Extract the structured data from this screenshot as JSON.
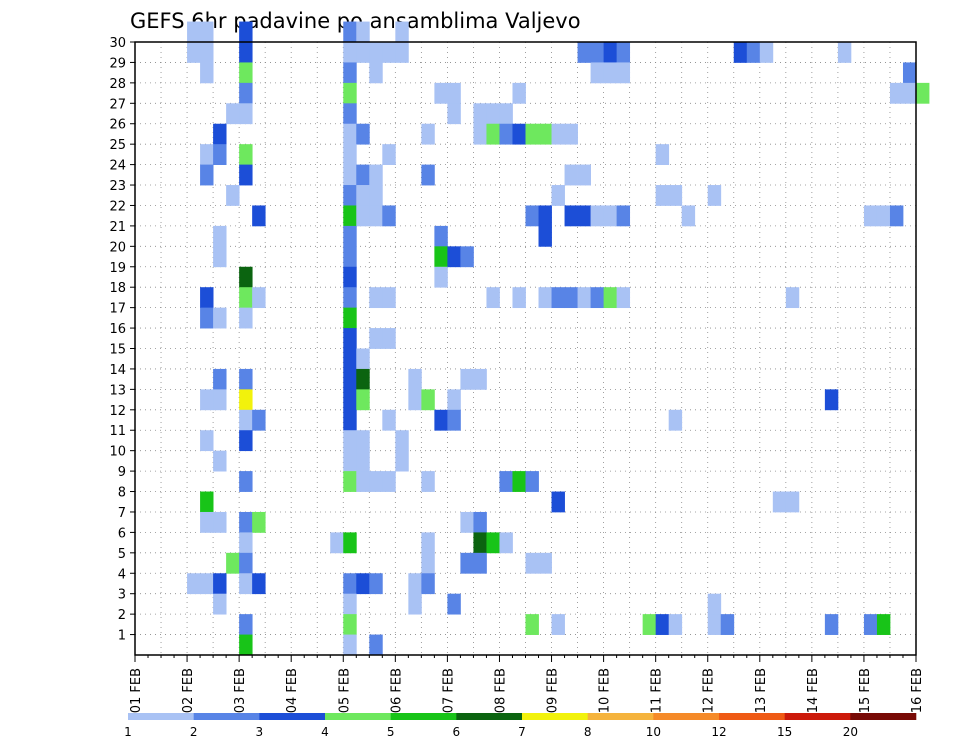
{
  "chart_data": {
    "type": "heatmap",
    "title": "GEFS 6hr padavine po ansamblima Valjevo",
    "xlabel": "",
    "ylabel": "",
    "x_ticks": [
      "01 FEB",
      "02 FEB",
      "03 FEB",
      "04 FEB",
      "05 FEB",
      "06 FEB",
      "07 FEB",
      "08 FEB",
      "09 FEB",
      "10 FEB",
      "11 FEB",
      "12 FEB",
      "13 FEB",
      "14 FEB",
      "15 FEB",
      "16 FEB"
    ],
    "xlim_days": [
      0,
      15
    ],
    "steps_per_day": 4,
    "y_ticks": [
      "1",
      "2",
      "3",
      "4",
      "5",
      "6",
      "7",
      "8",
      "9",
      "10",
      "11",
      "12",
      "13",
      "14",
      "15",
      "16",
      "17",
      "18",
      "19",
      "20",
      "21",
      "22",
      "23",
      "24",
      "25",
      "26",
      "27",
      "28",
      "29",
      "30"
    ],
    "ylim": [
      0,
      30
    ],
    "grid": true,
    "legend": {
      "placement": "bottom",
      "labels": [
        "1",
        "2",
        "3",
        "4",
        "5",
        "6",
        "7",
        "8",
        "10",
        "12",
        "15",
        "20"
      ],
      "colors": [
        "#a9c2f4",
        "#5884e6",
        "#1c4ed7",
        "#6ee85e",
        "#18c418",
        "#0b6410",
        "#f2f20c",
        "#f5b33c",
        "#f58a28",
        "#ef5a14",
        "#cc1a0a",
        "#780a06"
      ]
    },
    "cells": [
      [
        30,
        4,
        1
      ],
      [
        30,
        5,
        1
      ],
      [
        30,
        8,
        3
      ],
      [
        30,
        16,
        2
      ],
      [
        30,
        17,
        1
      ],
      [
        30,
        20,
        1
      ],
      [
        29,
        4,
        1
      ],
      [
        29,
        5,
        1
      ],
      [
        29,
        8,
        3
      ],
      [
        29,
        16,
        1
      ],
      [
        29,
        17,
        1
      ],
      [
        29,
        18,
        1
      ],
      [
        29,
        19,
        1
      ],
      [
        29,
        20,
        1
      ],
      [
        29,
        34,
        2
      ],
      [
        29,
        35,
        2
      ],
      [
        29,
        36,
        3
      ],
      [
        29,
        37,
        2
      ],
      [
        29,
        46,
        3
      ],
      [
        29,
        47,
        2
      ],
      [
        29,
        48,
        1
      ],
      [
        29,
        54,
        1
      ],
      [
        28,
        5,
        1
      ],
      [
        28,
        8,
        4
      ],
      [
        28,
        16,
        2
      ],
      [
        28,
        18,
        1
      ],
      [
        28,
        35,
        1
      ],
      [
        28,
        36,
        1
      ],
      [
        28,
        37,
        1
      ],
      [
        28,
        59,
        2
      ],
      [
        27,
        8,
        2
      ],
      [
        27,
        16,
        4
      ],
      [
        27,
        23,
        1
      ],
      [
        27,
        24,
        1
      ],
      [
        27,
        29,
        1
      ],
      [
        27,
        58,
        1
      ],
      [
        27,
        59,
        1
      ],
      [
        27,
        60,
        4
      ],
      [
        26,
        7,
        1
      ],
      [
        26,
        8,
        1
      ],
      [
        26,
        16,
        2
      ],
      [
        26,
        24,
        1
      ],
      [
        26,
        26,
        1
      ],
      [
        26,
        27,
        1
      ],
      [
        26,
        28,
        1
      ],
      [
        25,
        6,
        3
      ],
      [
        25,
        16,
        1
      ],
      [
        25,
        17,
        2
      ],
      [
        25,
        22,
        1
      ],
      [
        25,
        26,
        1
      ],
      [
        25,
        27,
        4
      ],
      [
        25,
        28,
        2
      ],
      [
        25,
        29,
        3
      ],
      [
        25,
        30,
        4
      ],
      [
        25,
        31,
        4
      ],
      [
        25,
        32,
        1
      ],
      [
        25,
        33,
        1
      ],
      [
        24,
        5,
        1
      ],
      [
        24,
        6,
        2
      ],
      [
        24,
        8,
        4
      ],
      [
        24,
        16,
        1
      ],
      [
        24,
        19,
        1
      ],
      [
        24,
        40,
        1
      ],
      [
        23,
        5,
        2
      ],
      [
        23,
        8,
        3
      ],
      [
        23,
        16,
        1
      ],
      [
        23,
        17,
        2
      ],
      [
        23,
        18,
        1
      ],
      [
        23,
        22,
        2
      ],
      [
        23,
        33,
        1
      ],
      [
        23,
        34,
        1
      ],
      [
        22,
        7,
        1
      ],
      [
        22,
        16,
        2
      ],
      [
        22,
        17,
        1
      ],
      [
        22,
        18,
        1
      ],
      [
        22,
        32,
        1
      ],
      [
        22,
        40,
        1
      ],
      [
        22,
        41,
        1
      ],
      [
        22,
        44,
        1
      ],
      [
        21,
        9,
        3
      ],
      [
        21,
        16,
        5
      ],
      [
        21,
        17,
        1
      ],
      [
        21,
        18,
        1
      ],
      [
        21,
        19,
        2
      ],
      [
        21,
        30,
        2
      ],
      [
        21,
        31,
        3
      ],
      [
        21,
        33,
        3
      ],
      [
        21,
        34,
        3
      ],
      [
        21,
        35,
        1
      ],
      [
        21,
        36,
        1
      ],
      [
        21,
        37,
        2
      ],
      [
        21,
        42,
        1
      ],
      [
        21,
        56,
        1
      ],
      [
        21,
        57,
        1
      ],
      [
        21,
        58,
        2
      ],
      [
        20,
        6,
        1
      ],
      [
        20,
        16,
        2
      ],
      [
        20,
        23,
        2
      ],
      [
        20,
        31,
        3
      ],
      [
        19,
        6,
        1
      ],
      [
        19,
        16,
        2
      ],
      [
        19,
        23,
        5
      ],
      [
        19,
        24,
        3
      ],
      [
        19,
        25,
        2
      ],
      [
        18,
        8,
        6
      ],
      [
        18,
        16,
        3
      ],
      [
        18,
        23,
        1
      ],
      [
        17,
        5,
        3
      ],
      [
        17,
        8,
        4
      ],
      [
        17,
        9,
        1
      ],
      [
        17,
        16,
        2
      ],
      [
        17,
        18,
        1
      ],
      [
        17,
        19,
        1
      ],
      [
        17,
        27,
        1
      ],
      [
        17,
        29,
        1
      ],
      [
        17,
        31,
        1
      ],
      [
        17,
        32,
        2
      ],
      [
        17,
        33,
        2
      ],
      [
        17,
        34,
        1
      ],
      [
        17,
        35,
        2
      ],
      [
        17,
        36,
        4
      ],
      [
        17,
        37,
        1
      ],
      [
        17,
        50,
        1
      ],
      [
        16,
        5,
        2
      ],
      [
        16,
        6,
        1
      ],
      [
        16,
        8,
        1
      ],
      [
        16,
        16,
        5
      ],
      [
        15,
        16,
        3
      ],
      [
        15,
        18,
        1
      ],
      [
        15,
        19,
        1
      ],
      [
        14,
        16,
        3
      ],
      [
        14,
        17,
        1
      ],
      [
        13,
        6,
        2
      ],
      [
        13,
        8,
        2
      ],
      [
        13,
        16,
        3
      ],
      [
        13,
        17,
        6
      ],
      [
        13,
        21,
        1
      ],
      [
        13,
        25,
        1
      ],
      [
        13,
        26,
        1
      ],
      [
        12,
        5,
        1
      ],
      [
        12,
        6,
        1
      ],
      [
        12,
        8,
        7
      ],
      [
        12,
        16,
        3
      ],
      [
        12,
        17,
        4
      ],
      [
        12,
        21,
        1
      ],
      [
        12,
        22,
        4
      ],
      [
        12,
        24,
        1
      ],
      [
        12,
        53,
        3
      ],
      [
        11,
        8,
        1
      ],
      [
        11,
        9,
        2
      ],
      [
        11,
        16,
        3
      ],
      [
        11,
        19,
        1
      ],
      [
        11,
        23,
        3
      ],
      [
        11,
        24,
        2
      ],
      [
        11,
        41,
        1
      ],
      [
        10,
        5,
        1
      ],
      [
        10,
        8,
        3
      ],
      [
        10,
        16,
        1
      ],
      [
        10,
        17,
        1
      ],
      [
        10,
        20,
        1
      ],
      [
        9,
        6,
        1
      ],
      [
        9,
        16,
        1
      ],
      [
        9,
        17,
        1
      ],
      [
        9,
        20,
        1
      ],
      [
        8,
        8,
        2
      ],
      [
        8,
        16,
        4
      ],
      [
        8,
        17,
        1
      ],
      [
        8,
        18,
        1
      ],
      [
        8,
        19,
        1
      ],
      [
        8,
        22,
        1
      ],
      [
        8,
        28,
        2
      ],
      [
        8,
        29,
        5
      ],
      [
        8,
        30,
        2
      ],
      [
        7,
        5,
        5
      ],
      [
        7,
        32,
        3
      ],
      [
        7,
        49,
        1
      ],
      [
        7,
        50,
        1
      ],
      [
        6,
        5,
        1
      ],
      [
        6,
        6,
        1
      ],
      [
        6,
        8,
        2
      ],
      [
        6,
        9,
        4
      ],
      [
        6,
        25,
        1
      ],
      [
        6,
        26,
        2
      ],
      [
        5,
        8,
        1
      ],
      [
        5,
        15,
        1
      ],
      [
        5,
        16,
        5
      ],
      [
        5,
        22,
        1
      ],
      [
        5,
        26,
        6
      ],
      [
        5,
        27,
        5
      ],
      [
        5,
        28,
        1
      ],
      [
        4,
        7,
        4
      ],
      [
        4,
        8,
        2
      ],
      [
        4,
        22,
        1
      ],
      [
        4,
        25,
        2
      ],
      [
        4,
        26,
        2
      ],
      [
        4,
        30,
        1
      ],
      [
        4,
        31,
        1
      ],
      [
        3,
        4,
        1
      ],
      [
        3,
        5,
        1
      ],
      [
        3,
        6,
        3
      ],
      [
        3,
        8,
        1
      ],
      [
        3,
        9,
        3
      ],
      [
        3,
        16,
        2
      ],
      [
        3,
        17,
        3
      ],
      [
        3,
        18,
        2
      ],
      [
        3,
        21,
        1
      ],
      [
        3,
        22,
        2
      ],
      [
        2,
        6,
        1
      ],
      [
        2,
        16,
        1
      ],
      [
        2,
        21,
        1
      ],
      [
        2,
        24,
        2
      ],
      [
        2,
        44,
        1
      ],
      [
        1,
        8,
        2
      ],
      [
        1,
        16,
        4
      ],
      [
        1,
        30,
        4
      ],
      [
        1,
        32,
        1
      ],
      [
        1,
        39,
        4
      ],
      [
        1,
        40,
        3
      ],
      [
        1,
        41,
        1
      ],
      [
        1,
        44,
        1
      ],
      [
        1,
        45,
        2
      ],
      [
        1,
        53,
        2
      ],
      [
        1,
        56,
        2
      ],
      [
        1,
        57,
        5
      ],
      [
        0,
        8,
        5
      ],
      [
        0,
        16,
        1
      ],
      [
        0,
        18,
        2
      ]
    ]
  }
}
